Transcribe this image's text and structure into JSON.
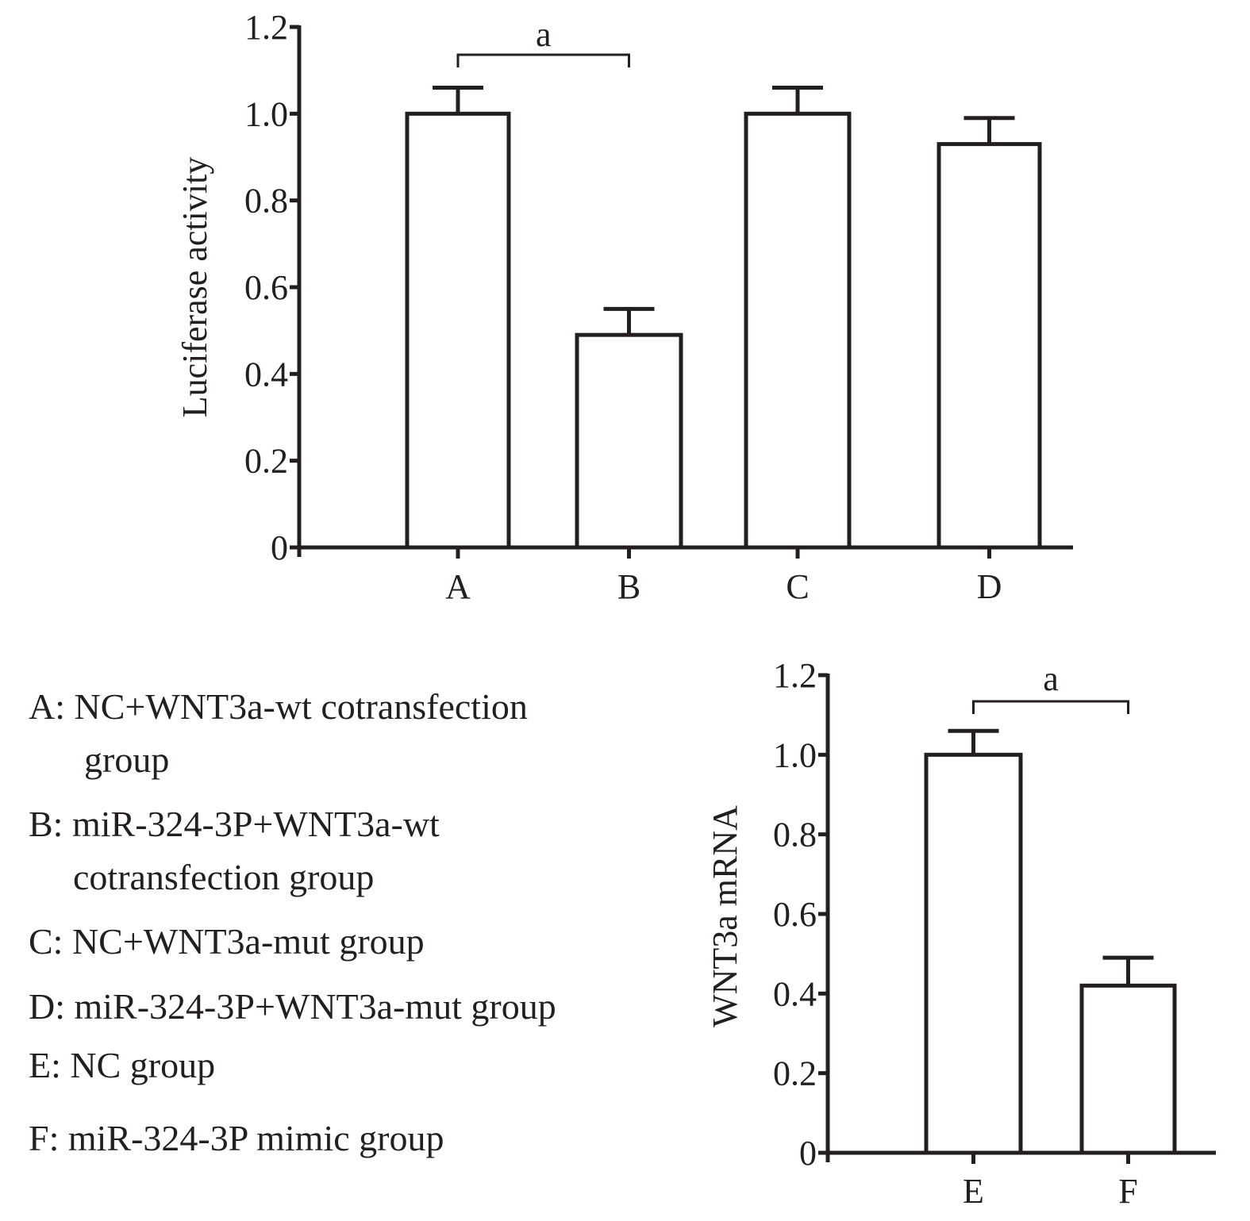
{
  "chart_data": [
    {
      "type": "bar",
      "title": "",
      "xlabel": "",
      "ylabel": "Luciferase activity",
      "ylim": [
        0,
        1.2
      ],
      "yticks": [
        "0",
        "0.2",
        "0.4",
        "0.6",
        "0.8",
        "1.0",
        "1.2"
      ],
      "categories": [
        "A",
        "B",
        "C",
        "D"
      ],
      "values": [
        1.0,
        0.49,
        1.0,
        0.93
      ],
      "errors": [
        0.06,
        0.06,
        0.06,
        0.06
      ],
      "grid": false,
      "significance": [
        {
          "from": "A",
          "to": "B",
          "label": "a"
        }
      ]
    },
    {
      "type": "bar",
      "title": "",
      "xlabel": "",
      "ylabel": "WNT3a mRNA",
      "ylim": [
        0,
        1.2
      ],
      "yticks": [
        "0",
        "0.2",
        "0.4",
        "0.6",
        "0.8",
        "1.0",
        "1.2"
      ],
      "categories": [
        "E",
        "F"
      ],
      "values": [
        1.0,
        0.42
      ],
      "errors": [
        0.06,
        0.07
      ],
      "grid": false,
      "significance": [
        {
          "from": "E",
          "to": "F",
          "label": "a"
        }
      ]
    }
  ],
  "legend": {
    "entries": [
      {
        "key": "A",
        "lines": [
          "A: NC+WNT3a-wt cotransfection",
          "group"
        ]
      },
      {
        "key": "B",
        "lines": [
          "B: miR-324-3P+WNT3a-wt",
          "cotransfection group"
        ]
      },
      {
        "key": "C",
        "lines": [
          "C: NC+WNT3a-mut group"
        ]
      },
      {
        "key": "D",
        "lines": [
          "D: miR-324-3P+WNT3a-mut group"
        ]
      },
      {
        "key": "E",
        "lines": [
          "E: NC group"
        ]
      },
      {
        "key": "F",
        "lines": [
          "F: miR-324-3P mimic group"
        ]
      }
    ]
  }
}
